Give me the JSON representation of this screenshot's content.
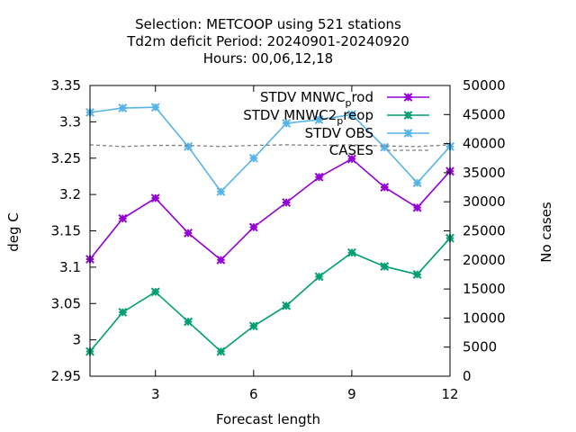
{
  "chart_data": {
    "type": "line",
    "title_lines": [
      "Selection: METCOOP using   521 stations",
      "Td2m deficit   Period: 20240901-20240920",
      "Hours:  00,06,12,18"
    ],
    "xlabel": "Forecast length",
    "ylabel": "deg C",
    "y2label": "No cases",
    "xlim": [
      1,
      12
    ],
    "ylim": [
      2.95,
      3.35
    ],
    "y2lim": [
      0,
      50000
    ],
    "xticks": [
      "3",
      "6",
      "9",
      "12"
    ],
    "yticks": [
      "2.95",
      "3",
      "3.05",
      "3.1",
      "3.15",
      "3.2",
      "3.25",
      "3.3",
      "3.35"
    ],
    "y2ticks": [
      "0",
      "5000",
      "10000",
      "15000",
      "20000",
      "25000",
      "30000",
      "35000",
      "40000",
      "45000",
      "50000"
    ],
    "legend_placement": "top-right",
    "x": [
      1,
      2,
      3,
      4,
      5,
      6,
      7,
      8,
      9,
      10,
      11,
      12
    ],
    "series": [
      {
        "name": "STDV MNWC_prod",
        "legend_main": "STDV MNWC",
        "legend_sub": "p",
        "legend_tail": "rod",
        "color": "#9400d3",
        "axis": "y1",
        "values": [
          3.111,
          3.167,
          3.195,
          3.147,
          3.11,
          3.155,
          3.189,
          3.224,
          3.249,
          3.21,
          3.182,
          3.232
        ]
      },
      {
        "name": "STDV MNWC2_preop",
        "legend_main": "STDV MNWC2",
        "legend_sub": "p",
        "legend_tail": "reop",
        "color": "#009e73",
        "axis": "y1",
        "values": [
          2.984,
          3.038,
          3.066,
          3.025,
          2.984,
          3.019,
          3.047,
          3.087,
          3.12,
          3.101,
          3.09,
          3.14
        ]
      },
      {
        "name": "STDV OBS",
        "legend_main": "STDV OBS",
        "legend_sub": "",
        "legend_tail": "",
        "color": "#56b4e9",
        "axis": "y1",
        "values": [
          3.313,
          3.319,
          3.32,
          3.266,
          3.204,
          3.25,
          3.298,
          3.303,
          3.31,
          3.265,
          3.216,
          3.266
        ]
      },
      {
        "name": "CASES",
        "legend_main": "CASES",
        "legend_sub": "",
        "legend_tail": "",
        "color": "#808080",
        "axis": "y2",
        "dashed": true,
        "values": [
          39800,
          39500,
          39700,
          39700,
          39500,
          39700,
          39800,
          39700,
          39800,
          39600,
          39500,
          39800
        ]
      }
    ]
  }
}
